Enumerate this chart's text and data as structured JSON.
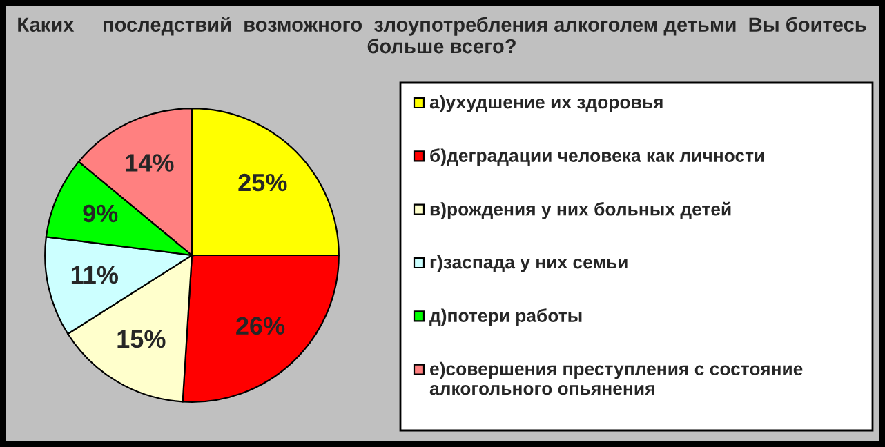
{
  "chart_data": {
    "type": "pie",
    "title": "Каких     последствий  возможного  злоупотребления алкоголем детьми  Вы боитесь больше всего?",
    "categories": [
      "а)ухудшение их здоровья",
      "б)деградации человека как личности",
      "в)рождения у них больных детей",
      "г)заспада у них семьи",
      "д)потери работы",
      "е)совершения преступления с состояние алкогольного опьянения"
    ],
    "values": [
      25,
      26,
      15,
      11,
      9,
      14
    ],
    "value_labels": [
      "25%",
      "26%",
      "15%",
      "11%",
      "9%",
      "14%"
    ],
    "colors": [
      "#ffff00",
      "#ff0000",
      "#ffffcc",
      "#ccffff",
      "#00ff00",
      "#ff8080"
    ],
    "legend": "right"
  }
}
